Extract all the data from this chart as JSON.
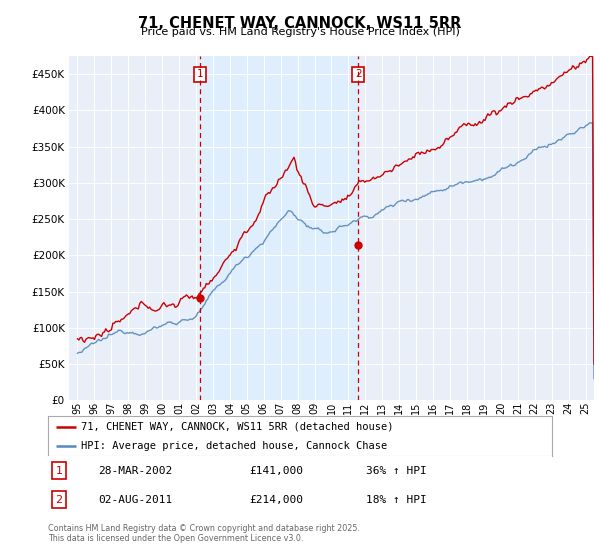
{
  "title": "71, CHENET WAY, CANNOCK, WS11 5RR",
  "subtitle": "Price paid vs. HM Land Registry's House Price Index (HPI)",
  "legend_line1": "71, CHENET WAY, CANNOCK, WS11 5RR (detached house)",
  "legend_line2": "HPI: Average price, detached house, Cannock Chase",
  "footer": "Contains HM Land Registry data © Crown copyright and database right 2025.\nThis data is licensed under the Open Government Licence v3.0.",
  "transaction1_date": "28-MAR-2002",
  "transaction1_price": "£141,000",
  "transaction1_hpi": "36% ↑ HPI",
  "transaction2_date": "02-AUG-2011",
  "transaction2_price": "£214,000",
  "transaction2_hpi": "18% ↑ HPI",
  "vline1_x": 2002.23,
  "vline2_x": 2011.58,
  "marker1_x": 2002.23,
  "marker1_y": 141000,
  "marker2_x": 2011.58,
  "marker2_y": 214000,
  "ylim": [
    0,
    475000
  ],
  "xlim": [
    1994.5,
    2025.5
  ],
  "yticks": [
    0,
    50000,
    100000,
    150000,
    200000,
    250000,
    300000,
    350000,
    400000,
    450000
  ],
  "xtick_years": [
    1995,
    1996,
    1997,
    1998,
    1999,
    2000,
    2001,
    2002,
    2003,
    2004,
    2005,
    2006,
    2007,
    2008,
    2009,
    2010,
    2011,
    2012,
    2013,
    2014,
    2015,
    2016,
    2017,
    2018,
    2019,
    2020,
    2021,
    2022,
    2023,
    2024,
    2025
  ],
  "red_color": "#cc0000",
  "blue_color": "#5588bb",
  "vline_color": "#cc0000",
  "shade_color": "#ddeeff",
  "plot_bg": "#e8eff8",
  "grid_color": "#ffffff"
}
